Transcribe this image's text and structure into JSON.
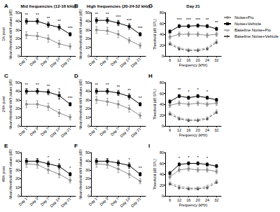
{
  "chart_data": [
    {
      "panel": "A",
      "title": "Mid frequencies (12-16 kHz)",
      "row_label": "1h post",
      "type": "line",
      "categories": [
        "Day 1",
        "Day 3",
        "Day 7",
        "Day 14",
        "Day 21"
      ],
      "y_label": "Mean threshold shift values (dB)",
      "ylim": [
        0,
        50
      ],
      "yticks": [
        0,
        10,
        20,
        30,
        40,
        50
      ],
      "series": [
        {
          "name": "Noise+Pio",
          "color": "#8c8c8c",
          "marker": "circle",
          "line_style": "solid",
          "values": [
            24,
            23,
            20,
            14,
            11
          ],
          "errors": [
            4,
            4,
            4,
            4,
            3
          ]
        },
        {
          "name": "Noise+Vehicle",
          "color": "#000000",
          "marker": "rect",
          "line_style": "solid",
          "values": [
            40,
            40,
            36,
            33,
            25
          ],
          "errors": [
            3,
            3,
            3,
            3,
            2
          ],
          "annotations": [
            "**",
            "**",
            "**",
            "**",
            "***"
          ]
        }
      ]
    },
    {
      "panel": "B",
      "title": "High frequencies (20-24-32 kHz)",
      "type": "line",
      "categories": [
        "Day 1",
        "Day 3",
        "Day 7",
        "Day 14",
        "Day 21"
      ],
      "y_label": "Mean threshold shift values (dB)",
      "ylim": [
        0,
        50
      ],
      "yticks": [
        0,
        10,
        20,
        30,
        40,
        50
      ],
      "series": [
        {
          "name": "Noise+Pio",
          "color": "#8c8c8c",
          "marker": "circle",
          "line_style": "solid",
          "values": [
            30,
            29,
            25,
            18,
            12
          ],
          "errors": [
            4,
            4,
            4,
            3,
            3
          ]
        },
        {
          "name": "Noise+Vehicle",
          "color": "#000000",
          "marker": "rect",
          "line_style": "solid",
          "values": [
            41,
            41,
            38,
            34,
            25
          ],
          "errors": [
            3,
            3,
            3,
            3,
            2
          ],
          "annotations": [
            "**",
            "**",
            "***",
            "***",
            "***"
          ]
        }
      ]
    },
    {
      "panel": "C",
      "row_label": "24h post",
      "type": "line",
      "categories": [
        "Day 1",
        "Day 3",
        "Day 7",
        "Day 14",
        "Day 21"
      ],
      "y_label": "Mean threshold shift values (dB)",
      "ylim": [
        0,
        50
      ],
      "yticks": [
        0,
        10,
        20,
        30,
        40,
        50
      ],
      "series": [
        {
          "name": "Noise+Pio",
          "color": "#8c8c8c",
          "marker": "circle",
          "line_style": "solid",
          "values": [
            25,
            25,
            22,
            15,
            10
          ],
          "errors": [
            4,
            4,
            4,
            4,
            3
          ]
        },
        {
          "name": "Noise+Vehicle",
          "color": "#000000",
          "marker": "rect",
          "line_style": "solid",
          "values": [
            40,
            40,
            39,
            35,
            25
          ],
          "errors": [
            3,
            3,
            3,
            4,
            2
          ],
          "annotations": [
            "**",
            "**",
            "**",
            "*",
            "***"
          ]
        }
      ]
    },
    {
      "panel": "D",
      "type": "line",
      "categories": [
        "Day 1",
        "Day 3",
        "Day 7",
        "Day 14",
        "Day 21"
      ],
      "y_label": "Mean threshold shift values (dB)",
      "ylim": [
        0,
        50
      ],
      "yticks": [
        0,
        10,
        20,
        30,
        40,
        50
      ],
      "series": [
        {
          "name": "Noise+Pio",
          "color": "#8c8c8c",
          "marker": "circle",
          "line_style": "solid",
          "values": [
            30,
            28,
            25,
            20,
            12
          ],
          "errors": [
            4,
            4,
            4,
            4,
            3
          ]
        },
        {
          "name": "Noise+Vehicle",
          "color": "#000000",
          "marker": "rect",
          "line_style": "solid",
          "values": [
            40,
            40,
            38,
            34,
            25
          ],
          "errors": [
            3,
            3,
            3,
            3,
            2
          ],
          "annotations": [
            "**",
            "**",
            "**",
            "**",
            "**"
          ]
        }
      ]
    },
    {
      "panel": "E",
      "row_label": "48h post",
      "type": "line",
      "categories": [
        "Day 1",
        "Day 3",
        "Day 7",
        "Day 14",
        "Day 21"
      ],
      "y_label": "Mean threshold shift values (dB)",
      "ylim": [
        0,
        50
      ],
      "yticks": [
        0,
        10,
        20,
        30,
        40,
        50
      ],
      "series": [
        {
          "name": "Noise+Pio",
          "color": "#8c8c8c",
          "marker": "circle",
          "line_style": "solid",
          "values": [
            37,
            36,
            30,
            25,
            18
          ],
          "errors": [
            4,
            4,
            4,
            4,
            3
          ]
        },
        {
          "name": "Noise+Vehicle",
          "color": "#000000",
          "marker": "rect",
          "line_style": "solid",
          "values": [
            40,
            40,
            37,
            34,
            25
          ],
          "errors": [
            3,
            3,
            3,
            3,
            2
          ],
          "annotations": [
            null,
            null,
            "*",
            "*",
            "*"
          ]
        }
      ]
    },
    {
      "panel": "F",
      "type": "line",
      "categories": [
        "Day 1",
        "Day 3",
        "Day 7",
        "Day 14",
        "Day 21"
      ],
      "y_label": "Mean threshold shift values (dB)",
      "ylim": [
        0,
        50
      ],
      "yticks": [
        0,
        10,
        20,
        30,
        40,
        50
      ],
      "series": [
        {
          "name": "Noise+Pio",
          "color": "#8c8c8c",
          "marker": "circle",
          "line_style": "solid",
          "values": [
            37,
            36,
            31,
            25,
            17
          ],
          "errors": [
            4,
            4,
            4,
            4,
            3
          ]
        },
        {
          "name": "Noise+Vehicle",
          "color": "#000000",
          "marker": "rect",
          "line_style": "solid",
          "values": [
            40,
            40,
            38,
            35,
            25
          ],
          "errors": [
            3,
            3,
            3,
            3,
            2
          ],
          "annotations": [
            null,
            null,
            null,
            "*",
            "**"
          ]
        }
      ]
    },
    {
      "panel": "G",
      "title": "Day 21",
      "type": "line",
      "legend": "right",
      "categories": [
        "6",
        "12",
        "16",
        "20",
        "24",
        "32"
      ],
      "x_label": "Frequency (kHz)",
      "y_label": "Threshold (dB SPL)",
      "ylim": [
        0,
        80
      ],
      "yticks": [
        0,
        20,
        40,
        60,
        80
      ],
      "series": [
        {
          "name": "Noise+Pio",
          "color": "#8c8c8c",
          "marker": "circle",
          "line_style": "solid",
          "values": [
            35,
            40,
            40,
            40,
            38,
            40
          ],
          "errors": [
            4,
            4,
            4,
            4,
            4,
            4
          ]
        },
        {
          "name": "Noise+Vehicle",
          "color": "#000000",
          "marker": "rect",
          "line_style": "solid",
          "values": [
            45,
            55,
            55,
            56,
            55,
            50
          ],
          "errors": [
            3,
            3,
            3,
            3,
            3,
            3
          ],
          "annotations": [
            null,
            "***",
            "***",
            "***",
            "**",
            "**"
          ]
        },
        {
          "name": "Baseline Noise+Pio",
          "color": "#b0b0b0",
          "marker": "triangle",
          "line_style": "dashed",
          "values": [
            25,
            15,
            12,
            12,
            15,
            28
          ],
          "errors": [
            2,
            2,
            2,
            2,
            2,
            2
          ]
        },
        {
          "name": "Baseline Noise+Vehicle",
          "color": "#555555",
          "marker": "diamond",
          "line_style": "dashed",
          "values": [
            22,
            13,
            10,
            10,
            13,
            25
          ],
          "errors": [
            2,
            2,
            2,
            2,
            2,
            2
          ]
        }
      ]
    },
    {
      "panel": "H",
      "type": "line",
      "categories": [
        "6",
        "12",
        "16",
        "20",
        "24",
        "32"
      ],
      "x_label": "Frequency (kHz)",
      "y_label": "Threshold (dB SPL)",
      "ylim": [
        0,
        80
      ],
      "yticks": [
        0,
        20,
        40,
        60,
        80
      ],
      "series": [
        {
          "name": "Noise+Pio",
          "color": "#8c8c8c",
          "marker": "circle",
          "line_style": "solid",
          "values": [
            38,
            42,
            40,
            42,
            40,
            42
          ],
          "errors": [
            4,
            4,
            4,
            4,
            4,
            4
          ]
        },
        {
          "name": "Noise+Vehicle",
          "color": "#000000",
          "marker": "rect",
          "line_style": "solid",
          "values": [
            45,
            55,
            52,
            55,
            52,
            48
          ],
          "errors": [
            3,
            3,
            3,
            3,
            3,
            3
          ],
          "annotations": [
            null,
            "**",
            "*",
            "*",
            "*",
            null
          ]
        },
        {
          "name": "Baseline Noise+Pio",
          "color": "#b0b0b0",
          "marker": "triangle",
          "line_style": "dashed",
          "values": [
            25,
            15,
            12,
            12,
            15,
            28
          ],
          "errors": [
            2,
            2,
            2,
            2,
            2,
            2
          ]
        },
        {
          "name": "Baseline Noise+Vehicle",
          "color": "#555555",
          "marker": "diamond",
          "line_style": "dashed",
          "values": [
            22,
            13,
            10,
            10,
            13,
            25
          ],
          "errors": [
            2,
            2,
            2,
            2,
            2,
            2
          ]
        }
      ]
    },
    {
      "panel": "I",
      "type": "line",
      "categories": [
        "6",
        "12",
        "16",
        "20",
        "24",
        "32"
      ],
      "x_label": "Frequency (kHz)",
      "y_label": "Threshold (dB SPL)",
      "ylim": [
        0,
        80
      ],
      "yticks": [
        0,
        20,
        40,
        60,
        80
      ],
      "series": [
        {
          "name": "Noise+Pio",
          "color": "#8c8c8c",
          "marker": "circle",
          "line_style": "solid",
          "values": [
            35,
            48,
            50,
            48,
            48,
            45
          ],
          "errors": [
            4,
            4,
            4,
            4,
            4,
            4
          ]
        },
        {
          "name": "Noise+Vehicle",
          "color": "#000000",
          "marker": "rect",
          "line_style": "solid",
          "values": [
            42,
            58,
            60,
            60,
            58,
            55
          ],
          "errors": [
            3,
            3,
            3,
            3,
            3,
            3
          ],
          "annotations": [
            null,
            "*",
            "*",
            "*",
            "*",
            null
          ]
        },
        {
          "name": "Baseline Noise+Pio",
          "color": "#b0b0b0",
          "marker": "triangle",
          "line_style": "dashed",
          "values": [
            25,
            18,
            15,
            15,
            18,
            28
          ],
          "errors": [
            2,
            2,
            2,
            2,
            2,
            2
          ]
        },
        {
          "name": "Baseline Noise+Vehicle",
          "color": "#555555",
          "marker": "diamond",
          "line_style": "dashed",
          "values": [
            22,
            15,
            13,
            13,
            15,
            25
          ],
          "errors": [
            2,
            2,
            2,
            2,
            2,
            2
          ]
        }
      ]
    }
  ]
}
